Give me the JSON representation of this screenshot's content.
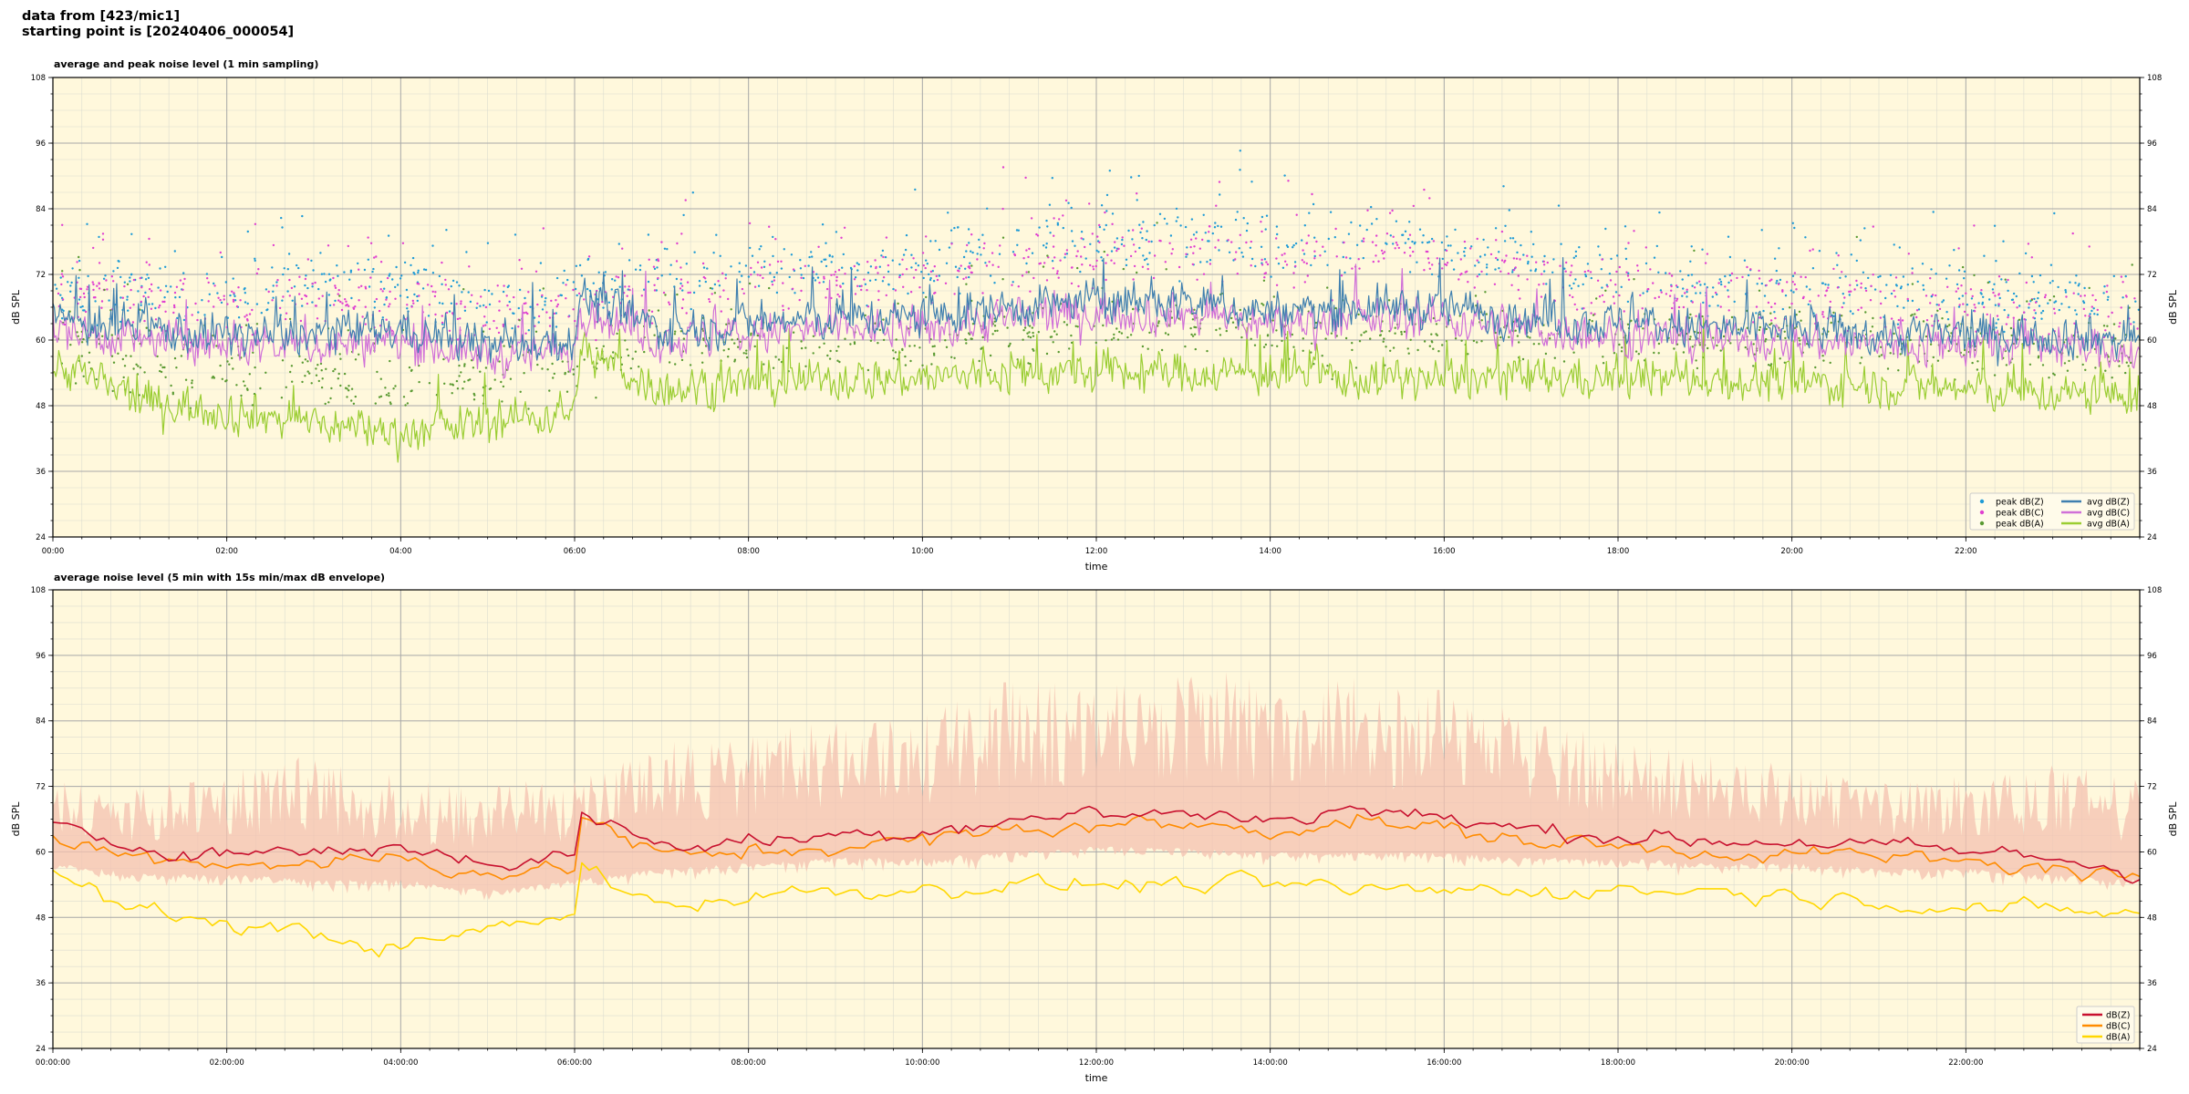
{
  "header": {
    "line1": "data from [423/mic1]",
    "line2": "starting point is [20240406_000054]"
  },
  "colors": {
    "plot_background": "#fff8dc",
    "peak_z": "#1f9bd6",
    "peak_c": "#e040d0",
    "peak_a": "#5a9a32",
    "avg_z": "#3f7faf",
    "avg_c": "#d070d8",
    "avg_a": "#9acd32",
    "db_z": "#c8102e",
    "db_c": "#ff8c00",
    "db_a": "#ffd700",
    "envelope": "#f4c2b0"
  },
  "chart_data": [
    {
      "type": "line",
      "title": "average and peak noise level (1 min sampling)",
      "xlabel": "time",
      "ylabel": "dB SPL",
      "xlim_hours": [
        0,
        24
      ],
      "ylim": [
        24,
        108
      ],
      "yticks": [
        24,
        36,
        48,
        60,
        72,
        84,
        96,
        108
      ],
      "xtick_hours": [
        0,
        2,
        4,
        6,
        8,
        10,
        12,
        14,
        16,
        18,
        20,
        22
      ],
      "xtick_labels": [
        "00:00",
        "02:00",
        "04:00",
        "06:00",
        "08:00",
        "10:00",
        "12:00",
        "14:00",
        "16:00",
        "18:00",
        "20:00",
        "22:00"
      ],
      "grid": true,
      "legend_placement": "lower-right",
      "legend": [
        "peak dB(Z)",
        "peak dB(C)",
        "peak dB(A)",
        "avg dB(Z)",
        "avg dB(C)",
        "avg dB(A)"
      ],
      "series": [
        {
          "name": "avg dB(Z)",
          "kind": "line",
          "color_key": "avg_z",
          "x_hours": [
            0,
            1,
            2,
            3,
            4,
            5,
            6,
            6.05,
            7,
            8,
            9,
            10,
            11,
            12,
            13,
            14,
            15,
            16,
            17,
            18,
            19,
            20,
            21,
            22,
            23,
            24
          ],
          "values": [
            64,
            62,
            61,
            61,
            62,
            59,
            60,
            68,
            62,
            63,
            64,
            64,
            66,
            67,
            67,
            65,
            66,
            66,
            64,
            63,
            62,
            62,
            61,
            61,
            61,
            60
          ]
        },
        {
          "name": "avg dB(C)",
          "kind": "line",
          "color_key": "avg_c",
          "x_hours": [
            0,
            1,
            2,
            3,
            4,
            5,
            6,
            6.05,
            7,
            8,
            9,
            10,
            11,
            12,
            13,
            14,
            15,
            16,
            17,
            18,
            19,
            20,
            21,
            22,
            23,
            24
          ],
          "values": [
            62,
            60,
            59,
            59,
            60,
            57,
            58,
            66,
            60,
            61,
            62,
            62,
            64,
            65,
            65,
            63,
            64,
            64,
            62,
            61,
            60,
            60,
            59,
            59,
            59,
            58
          ]
        },
        {
          "name": "avg dB(A)",
          "kind": "line",
          "color_key": "avg_a",
          "x_hours": [
            0,
            1,
            2,
            3,
            4,
            5,
            6,
            6.05,
            7,
            8,
            9,
            10,
            11,
            12,
            13,
            14,
            15,
            16,
            17,
            18,
            19,
            20,
            21,
            22,
            23,
            24
          ],
          "values": [
            56,
            49,
            47,
            45,
            43,
            45,
            47,
            58,
            51,
            52,
            53,
            53,
            54,
            54,
            54,
            54,
            53,
            53,
            53,
            53,
            53,
            52,
            52,
            51,
            50,
            50
          ]
        },
        {
          "name": "peak dB(Z)",
          "kind": "scatter",
          "color_key": "peak_z",
          "x_hours": [
            0,
            1,
            2,
            3,
            4,
            5,
            6,
            7,
            8,
            9,
            10,
            11,
            12,
            13,
            14,
            15,
            16,
            17,
            18,
            19,
            20,
            21,
            22,
            23,
            24
          ],
          "values": [
            70,
            69,
            68,
            70,
            70,
            66,
            68,
            71,
            72,
            74,
            73,
            76,
            78,
            79,
            77,
            78,
            77,
            74,
            71,
            70,
            70,
            69,
            68,
            68,
            67
          ]
        },
        {
          "name": "peak dB(C)",
          "kind": "scatter",
          "color_key": "peak_c",
          "x_hours": [
            0,
            1,
            2,
            3,
            4,
            5,
            6,
            7,
            8,
            9,
            10,
            11,
            12,
            13,
            14,
            15,
            16,
            17,
            18,
            19,
            20,
            21,
            22,
            23,
            24
          ],
          "values": [
            68,
            67,
            66,
            68,
            68,
            64,
            66,
            69,
            70,
            72,
            71,
            74,
            76,
            77,
            75,
            76,
            75,
            72,
            69,
            68,
            68,
            67,
            66,
            66,
            65
          ]
        },
        {
          "name": "peak dB(A)",
          "kind": "scatter",
          "color_key": "peak_a",
          "x_hours": [
            0,
            1,
            2,
            3,
            4,
            5,
            6,
            7,
            8,
            9,
            10,
            11,
            12,
            13,
            14,
            15,
            16,
            17,
            18,
            19,
            20,
            21,
            22,
            23,
            24
          ],
          "values": [
            60,
            55,
            54,
            53,
            52,
            53,
            55,
            60,
            59,
            60,
            60,
            61,
            62,
            62,
            62,
            61,
            61,
            61,
            60,
            60,
            60,
            59,
            59,
            58,
            58
          ]
        }
      ]
    },
    {
      "type": "line",
      "title": "average noise level (5 min with 15s min/max dB envelope)",
      "xlabel": "time",
      "ylabel": "dB SPL",
      "xlim_hours": [
        0,
        24
      ],
      "ylim": [
        24,
        108
      ],
      "yticks": [
        24,
        36,
        48,
        60,
        72,
        84,
        96,
        108
      ],
      "xtick_hours": [
        0,
        2,
        4,
        6,
        8,
        10,
        12,
        14,
        16,
        18,
        20,
        22
      ],
      "xtick_labels": [
        "00:00:00",
        "02:00:00",
        "04:00:00",
        "06:00:00",
        "08:00:00",
        "10:00:00",
        "12:00:00",
        "14:00:00",
        "16:00:00",
        "18:00:00",
        "20:00:00",
        "22:00:00"
      ],
      "grid": true,
      "legend_placement": "lower-right",
      "legend": [
        "dB(Z)",
        "dB(C)",
        "dB(A)"
      ],
      "series": [
        {
          "name": "dB(Z)",
          "kind": "line",
          "color_key": "db_z",
          "x_hours": [
            0,
            1,
            2,
            3,
            4,
            5,
            6,
            6.05,
            7,
            8,
            9,
            10,
            11,
            12,
            13,
            14,
            15,
            16,
            17,
            18,
            19,
            20,
            21,
            22,
            23,
            24
          ],
          "values": [
            64,
            61,
            60,
            60,
            61,
            58,
            59,
            68,
            61,
            62,
            63,
            64,
            66,
            67,
            67,
            66,
            68,
            66,
            64,
            63,
            62,
            62,
            61,
            60,
            59,
            56
          ]
        },
        {
          "name": "dB(C)",
          "kind": "line",
          "color_key": "db_c",
          "x_hours": [
            0,
            1,
            2,
            3,
            4,
            5,
            6,
            6.05,
            7,
            8,
            9,
            10,
            11,
            12,
            13,
            14,
            15,
            16,
            17,
            18,
            19,
            20,
            21,
            22,
            23,
            24
          ],
          "values": [
            62,
            59,
            58,
            58,
            59,
            56,
            57,
            67,
            59,
            60,
            61,
            62,
            64,
            65,
            65,
            64,
            66,
            64,
            62,
            61,
            60,
            60,
            59,
            58,
            57,
            55
          ]
        },
        {
          "name": "dB(A)",
          "kind": "line",
          "color_key": "db_a",
          "x_hours": [
            0,
            1,
            2,
            3,
            4,
            5,
            6,
            6.05,
            7,
            8,
            9,
            10,
            11,
            12,
            13,
            14,
            15,
            16,
            17,
            18,
            19,
            20,
            21,
            22,
            23,
            24
          ],
          "values": [
            56,
            49,
            47,
            45,
            42,
            46,
            48,
            58,
            50,
            52,
            53,
            53,
            54,
            54,
            54,
            54,
            53,
            53,
            53,
            53,
            53,
            52,
            51,
            50,
            49,
            49
          ]
        }
      ],
      "envelope": {
        "color_key": "envelope",
        "x_hours": [
          0,
          1,
          2,
          3,
          4,
          5,
          6,
          7,
          8,
          9,
          10,
          11,
          12,
          13,
          14,
          15,
          16,
          17,
          18,
          19,
          20,
          21,
          22,
          23,
          24
        ],
        "min": [
          58,
          56,
          56,
          55,
          55,
          53,
          55,
          57,
          58,
          59,
          59,
          60,
          61,
          61,
          60,
          60,
          60,
          59,
          59,
          58,
          58,
          57,
          57,
          56,
          55
        ],
        "max": [
          74,
          72,
          76,
          78,
          74,
          72,
          75,
          80,
          82,
          84,
          86,
          92,
          93,
          94,
          93,
          92,
          90,
          86,
          80,
          78,
          76,
          74,
          74,
          76,
          74
        ]
      }
    }
  ]
}
